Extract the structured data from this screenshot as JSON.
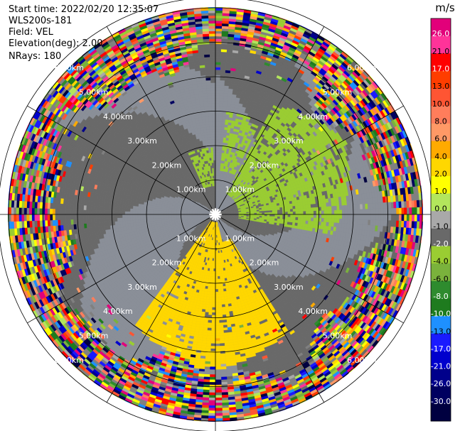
{
  "header": {
    "start_time": "Start time: 2022/02/20 12:35:07",
    "instrument": "WLS200s-181",
    "field": "Field: VEL",
    "elevation": "Elevation(deg): 2.00",
    "nrays": "NRays: 180"
  },
  "chart_data": {
    "type": "heatmap",
    "projection": "polar-ppi",
    "field": "VEL",
    "units": "m/s",
    "elevation_deg": 2.0,
    "nrays": 180,
    "range_rings_km": [
      1,
      2,
      3,
      4,
      5,
      6
    ],
    "range_ring_labels": [
      "1.00km",
      "2.00km",
      "3.00km",
      "4.00km",
      "5.00km",
      "6.00km"
    ],
    "max_range_km": 6.3,
    "spoke_azimuths_deg": [
      0,
      30,
      60,
      90,
      120,
      150,
      180,
      210,
      240,
      270,
      300,
      330
    ],
    "colorbar": {
      "ticks": [
        26.0,
        21.0,
        17.0,
        13.0,
        10.0,
        8.0,
        6.0,
        4.0,
        2.0,
        1.0,
        0.0,
        -1.0,
        -2.0,
        -4.0,
        -6.0,
        -8.0,
        -10.0,
        -13.0,
        -17.0,
        -21.0,
        -26.0,
        -30.0
      ],
      "tick_labels": [
        "26.0",
        "21.0",
        "17.0",
        "13.0",
        "10.0",
        "8.0",
        "6.0",
        "4.0",
        "2.0",
        "1.0",
        "0.0",
        "-1.0",
        "-2.0",
        "-4.0",
        "-6.0",
        "-8.0",
        "-10.0",
        "-13.0",
        "-17.0",
        "-21.0",
        "-26.0",
        "-30.0"
      ],
      "colors": [
        "#e2007a",
        "#ff3399",
        "#ff0000",
        "#ff3d00",
        "#ff5533",
        "#ff7d5b",
        "#ff9966",
        "#ffaa00",
        "#ffd700",
        "#ffff00",
        "#b3e65c",
        "#a9a9a9",
        "#696969",
        "#9acd32",
        "#7ab23c",
        "#2e8b2e",
        "#1e7b1e",
        "#1e90ff",
        "#1a1aff",
        "#0000cd",
        "#00008b",
        "#000060",
        "#000040"
      ]
    },
    "regions": [
      {
        "label": "inbound 2.0 to 4.0 m/s",
        "value_range": [
          2.0,
          4.0
        ],
        "azimuth_deg": [
          150,
          215
        ],
        "range_km": [
          0.2,
          4.5
        ]
      },
      {
        "label": "outbound -2.0 to -1.0 m/s",
        "value_range": [
          -2.0,
          -1.0
        ],
        "azimuth_deg": [
          30,
          100
        ],
        "range_km": [
          0.5,
          4.2
        ]
      },
      {
        "label": "outbound -2.0 to -1.0 m/s",
        "value_range": [
          -2.0,
          -1.0
        ],
        "azimuth_deg": [
          5,
          25
        ],
        "range_km": [
          1.2,
          3.0
        ]
      },
      {
        "label": "outbound -2.0 to -1.0 m/s",
        "value_range": [
          -2.0,
          -1.0
        ],
        "azimuth_deg": [
          335,
          358
        ],
        "range_km": [
          0.8,
          1.9
        ]
      },
      {
        "label": "near zero -1.0 to 0.0 m/s",
        "value_range": [
          -1.0,
          0.0
        ],
        "azimuth_deg": [
          0,
          360
        ],
        "range_km": [
          0.2,
          4.5
        ]
      },
      {
        "label": "noise",
        "value_range": [
          -30.0,
          26.0
        ],
        "azimuth_deg": [
          0,
          360
        ],
        "range_km": [
          4.5,
          6.3
        ]
      }
    ]
  }
}
